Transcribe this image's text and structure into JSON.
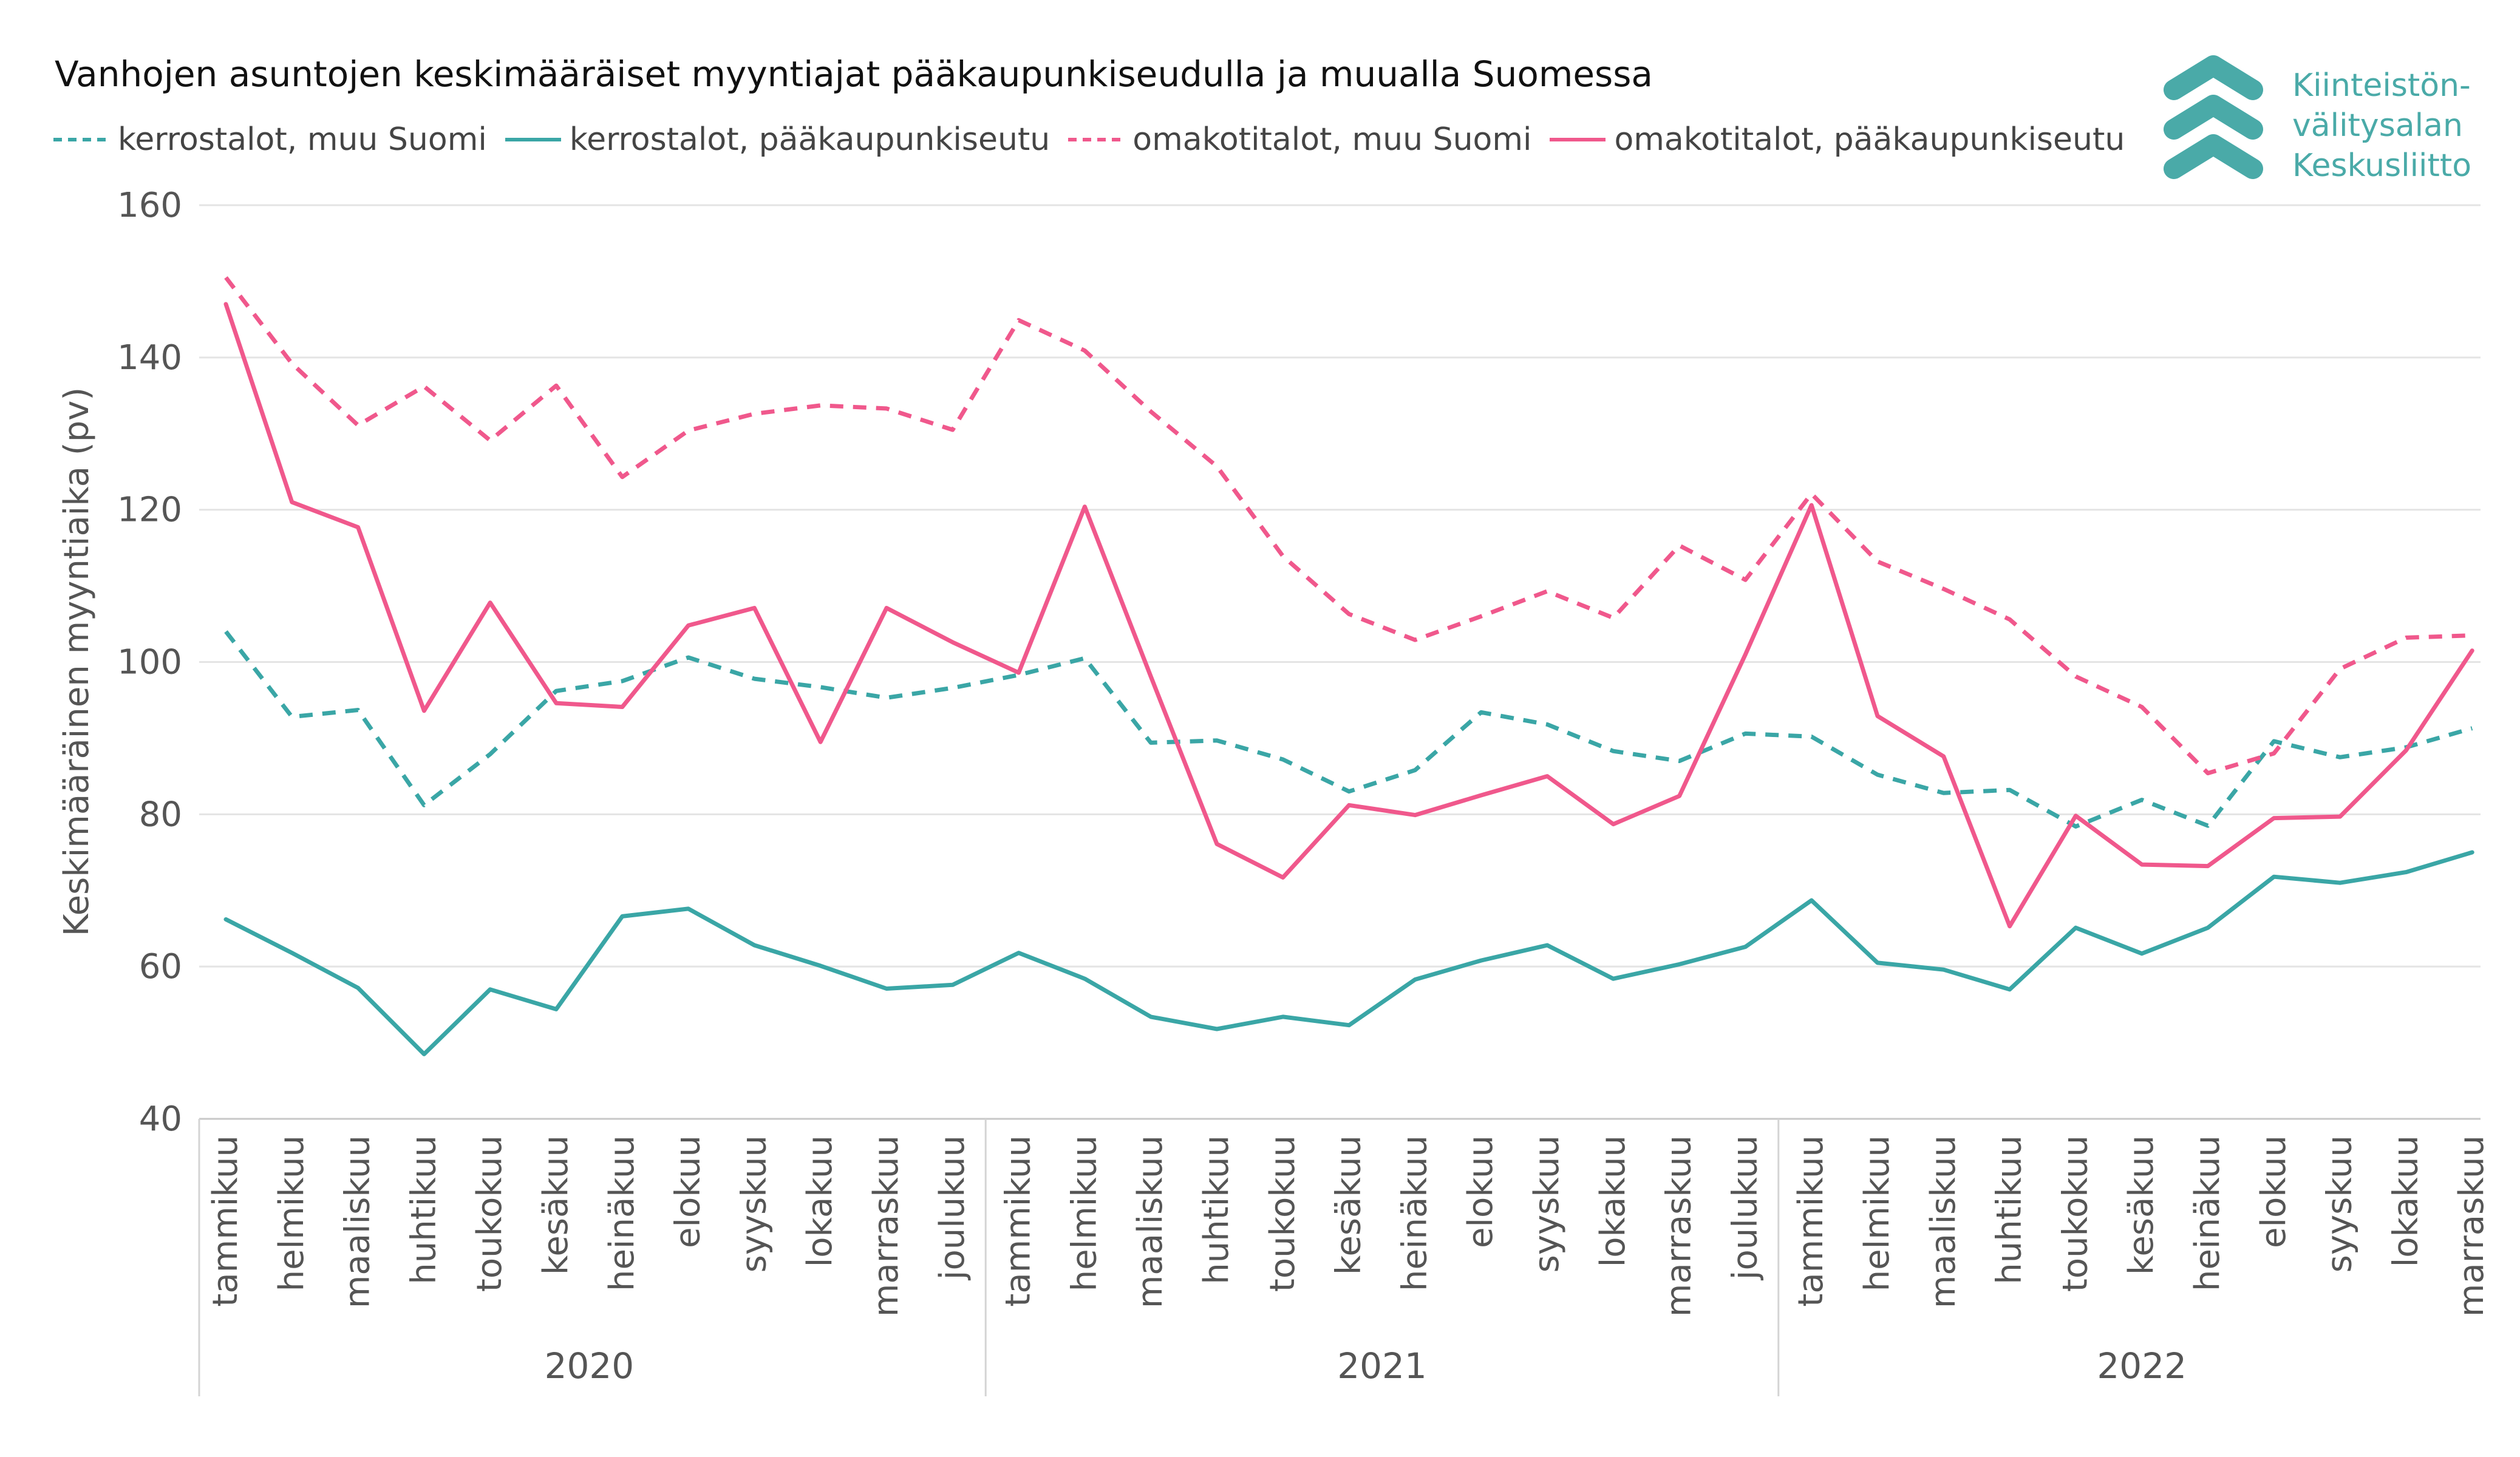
{
  "chart_data": {
    "type": "line",
    "title": "Vanhojen asuntojen keskimääräiset myyntiajat pääkaupunkiseudulla ja muualla Suomessa",
    "ylabel": "Keskimääräinen myyntiaika (pv)",
    "xlabel": "",
    "ylim": [
      40,
      160
    ],
    "yticks": [
      40,
      60,
      80,
      100,
      120,
      140,
      160
    ],
    "grid": true,
    "legend_position": "top-left",
    "years": [
      {
        "label": "2020",
        "months": [
          "tammikuu",
          "helmikuu",
          "maaliskuu",
          "huhtikuu",
          "toukokuu",
          "kesäkuu",
          "heinäkuu",
          "elokuu",
          "syyskuu",
          "lokakuu",
          "marraskuu",
          "joulukuu"
        ]
      },
      {
        "label": "2021",
        "months": [
          "tammikuu",
          "helmikuu",
          "maaliskuu",
          "huhtikuu",
          "toukokuu",
          "kesäkuu",
          "heinäkuu",
          "elokuu",
          "syyskuu",
          "lokakuu",
          "marraskuu",
          "joulukuu"
        ]
      },
      {
        "label": "2022",
        "months": [
          "tammikuu",
          "helmikuu",
          "maaliskuu",
          "huhtikuu",
          "toukokuu",
          "kesäkuu",
          "heinäkuu",
          "elokuu",
          "syyskuu",
          "lokakuu",
          "marraskuu"
        ]
      }
    ],
    "series": [
      {
        "name": "kerrostalot, muu Suomi",
        "color": "#3aa6a6",
        "dash": true,
        "values": [
          104,
          92.8,
          93.7,
          81.2,
          87.9,
          96.2,
          97.5,
          100.6,
          97.8,
          96.7,
          95.3,
          96.6,
          98.3,
          100.5,
          89.4,
          89.7,
          87.2,
          83.0,
          85.8,
          93.4,
          91.8,
          88.3,
          87.0,
          90.6,
          90.2,
          85.2,
          82.8,
          83.2,
          78.4,
          81.9,
          78.5,
          89.6,
          87.5,
          88.8,
          91.3
        ]
      },
      {
        "name": "kerrostalot, pääkaupunkiseutu",
        "color": "#3aa6a6",
        "dash": false,
        "values": [
          66.2,
          61.8,
          57.2,
          48.5,
          57.0,
          54.4,
          66.6,
          67.6,
          62.8,
          60.1,
          57.1,
          57.6,
          61.8,
          58.4,
          53.4,
          51.8,
          53.4,
          52.3,
          58.3,
          60.8,
          62.8,
          58.4,
          60.3,
          62.6,
          68.7,
          60.5,
          59.6,
          57.0,
          65.1,
          61.7,
          65.1,
          71.8,
          71.0,
          72.4,
          75.0
        ]
      },
      {
        "name": "omakotitalot, muu Suomi",
        "color": "#f0588c",
        "dash": true,
        "values": [
          150.5,
          139.2,
          131.1,
          136.2,
          129.1,
          136.3,
          124.3,
          130.4,
          132.6,
          133.7,
          133.3,
          130.5,
          144.9,
          140.9,
          132.9,
          125.7,
          113.9,
          106.3,
          102.9,
          106.0,
          109.3,
          105.8,
          115.3,
          110.8,
          122.1,
          113.2,
          109.6,
          105.6,
          98.1,
          94.1,
          85.4,
          88.0,
          99.1,
          103.2,
          103.5
        ]
      },
      {
        "name": "omakotitalot, pääkaupunkiseutu",
        "color": "#f0588c",
        "dash": false,
        "values": [
          147.0,
          121.0,
          117.7,
          93.6,
          107.8,
          94.6,
          94.1,
          104.8,
          107.1,
          89.5,
          107.1,
          102.6,
          98.6,
          120.4,
          98.1,
          76.1,
          71.7,
          81.2,
          79.9,
          82.5,
          85.0,
          78.7,
          82.4,
          101.0,
          120.6,
          92.9,
          87.6,
          65.3,
          79.8,
          73.4,
          73.2,
          79.5,
          79.7,
          88.4,
          101.5
        ]
      }
    ]
  },
  "logo": {
    "lines": [
      "Kiinteistön-",
      "välitysalan",
      "Keskusliitto"
    ],
    "color": "#4aaaa8"
  }
}
